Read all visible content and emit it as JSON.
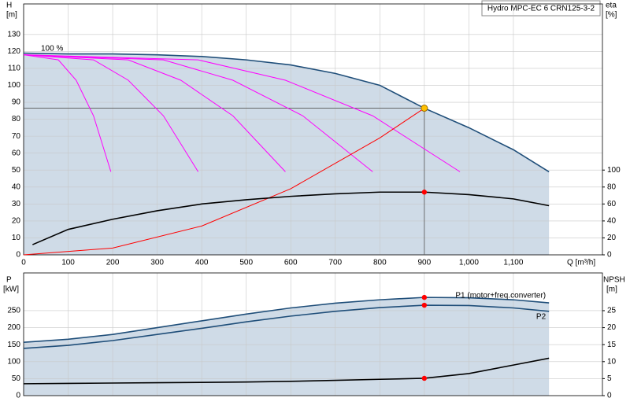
{
  "chart_data": [
    {
      "type": "line",
      "title": "Hydro MPC-EC 6 CRN125-3-2",
      "y_label": "H",
      "y_unit": "[m]",
      "y2_label": "eta",
      "y2_unit": "[%]",
      "x_label": "Q [m³/h]",
      "annotation": "100 %",
      "xlim": [
        0,
        1300
      ],
      "xticks": [
        0,
        100,
        200,
        300,
        400,
        500,
        600,
        700,
        800,
        900,
        {
          "value": 1000,
          "label": "1,000"
        },
        {
          "value": 1100,
          "label": "1,100"
        }
      ],
      "ylim": [
        0,
        148
      ],
      "yticks": [
        0,
        10,
        20,
        30,
        40,
        50,
        60,
        70,
        80,
        90,
        100,
        110,
        120,
        130
      ],
      "y2lim": [
        0,
        296
      ],
      "y2ticks": [
        0,
        20,
        40,
        60,
        80,
        100
      ],
      "grid": true,
      "fill_color": "#cfdbe7",
      "duty_point": {
        "x": 900,
        "y": 86.5,
        "color": "#ffc000"
      },
      "series": [
        {
          "color": "#1f4e79",
          "fill": true,
          "x": [
            0,
            100,
            200,
            300,
            400,
            500,
            600,
            700,
            800,
            900,
            1000,
            1100,
            1180
          ],
          "values": [
            119,
            118.5,
            118.5,
            118,
            117,
            115,
            112,
            107,
            100,
            86.5,
            75,
            62,
            49
          ]
        },
        {
          "color": "#ff00ff",
          "x": [
            0,
            78,
            118,
            157,
            196
          ],
          "values": [
            118,
            115,
            103,
            82,
            49
          ]
        },
        {
          "color": "#ff00ff",
          "x": [
            0,
            157,
            235,
            314,
            392
          ],
          "values": [
            118,
            115,
            103,
            82,
            49
          ]
        },
        {
          "color": "#ff00ff",
          "x": [
            0,
            235,
            353,
            470,
            588
          ],
          "values": [
            118,
            115,
            103,
            82,
            49
          ]
        },
        {
          "color": "#ff00ff",
          "x": [
            0,
            314,
            470,
            627,
            784
          ],
          "values": [
            118,
            115,
            103,
            82,
            49
          ]
        },
        {
          "color": "#ff00ff",
          "x": [
            0,
            392,
            588,
            784,
            980
          ],
          "values": [
            118,
            115,
            103,
            82,
            49
          ]
        },
        {
          "color": "#ff0000",
          "x": [
            0,
            200,
            400,
            600,
            800,
            900
          ],
          "values": [
            0,
            4,
            17,
            39,
            69,
            86.5
          ]
        },
        {
          "color": "#000000",
          "axis": "y2",
          "x": [
            20,
            100,
            200,
            300,
            400,
            500,
            600,
            700,
            800,
            900,
            1000,
            1100,
            1180
          ],
          "values": [
            12,
            30,
            42,
            52,
            60,
            65,
            69,
            72,
            74,
            74,
            71,
            66,
            58
          ]
        }
      ]
    },
    {
      "type": "line",
      "y_label": "P",
      "y_unit": "[kW]",
      "y2_label": "NPSH",
      "y2_unit": "[m]",
      "xlim": [
        0,
        1300
      ],
      "xticks": [
        0,
        100,
        200,
        300,
        400,
        500,
        600,
        700,
        800,
        900,
        1000,
        1100
      ],
      "ylim": [
        0,
        361
      ],
      "yticks": [
        0,
        50,
        100,
        150,
        200,
        250
      ],
      "y2lim": [
        0,
        36.1
      ],
      "y2ticks": [
        0,
        5,
        10,
        15,
        20,
        25
      ],
      "grid": true,
      "fill_color": "#cfdbe7",
      "series": [
        {
          "name": "P1 (motor+freq.converter)",
          "color": "#1f4e79",
          "fill": true,
          "x": [
            0,
            100,
            200,
            300,
            400,
            500,
            600,
            700,
            800,
            900,
            1000,
            1100,
            1180
          ],
          "values": [
            157,
            166,
            180,
            200,
            220,
            240,
            258,
            272,
            282,
            289,
            288,
            282,
            273
          ]
        },
        {
          "name": "P2",
          "color": "#1f4e79",
          "x": [
            0,
            100,
            200,
            300,
            400,
            500,
            600,
            700,
            800,
            900,
            1000,
            1100,
            1180
          ],
          "values": [
            139,
            148,
            162,
            180,
            198,
            217,
            234,
            248,
            259,
            266,
            265,
            258,
            248
          ]
        },
        {
          "color": "#000000",
          "axis": "y2",
          "x": [
            0,
            100,
            200,
            300,
            400,
            500,
            600,
            700,
            800,
            900,
            1000,
            1100,
            1180
          ],
          "values": [
            3.5,
            3.6,
            3.7,
            3.8,
            3.9,
            4.0,
            4.2,
            4.5,
            4.8,
            5.1,
            6.5,
            9,
            11
          ]
        }
      ]
    }
  ]
}
